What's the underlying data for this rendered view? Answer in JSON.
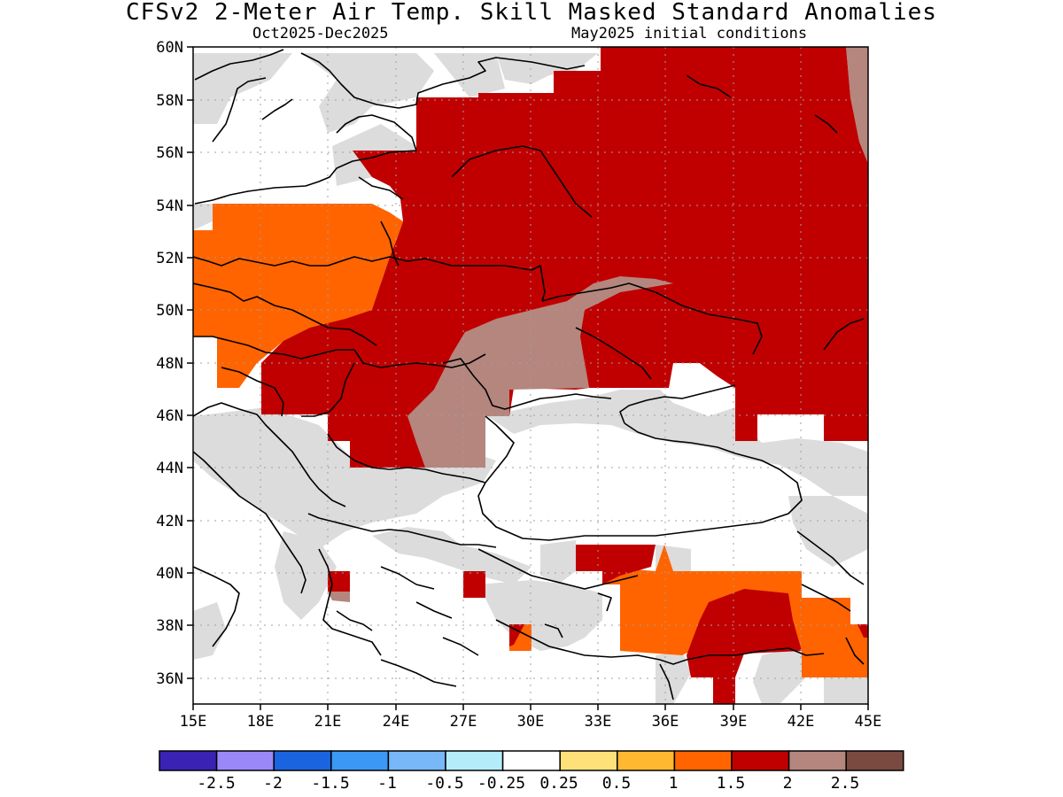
{
  "header": {
    "title": "CFSv2 2-Meter Air Temp. Skill Masked Standard Anomalies",
    "period": "Oct2025-Dec2025",
    "init": "May2025 initial conditions"
  },
  "axes": {
    "x_labels": [
      "15E",
      "18E",
      "21E",
      "24E",
      "27E",
      "30E",
      "33E",
      "36E",
      "39E",
      "42E",
      "45E"
    ],
    "y_labels": [
      "60N",
      "58N",
      "56N",
      "54N",
      "52N",
      "50N",
      "48N",
      "46N",
      "44N",
      "42N",
      "40N",
      "38N",
      "36N"
    ]
  },
  "colorbar": {
    "colors": [
      "#3a22b4",
      "#9a88f8",
      "#1a64e0",
      "#3c98f5",
      "#78b8f8",
      "#b4ecfa",
      "#ffffff",
      "#ffe17a",
      "#ffb830",
      "#ff6400",
      "#c00000",
      "#b4867e",
      "#7a4a40"
    ],
    "labels": [
      "-2.5",
      "-2",
      "-1.5",
      "-1",
      "-0.5",
      "-0.25",
      "0.25",
      "0.5",
      "1",
      "1.5",
      "2",
      "2.5"
    ]
  },
  "colors": {
    "grey_mask": "#dcdcdc",
    "anomaly_1_1_5": "#ff6400",
    "anomaly_1_5_2": "#c00000",
    "anomaly_2_2_5": "#b4867e"
  }
}
